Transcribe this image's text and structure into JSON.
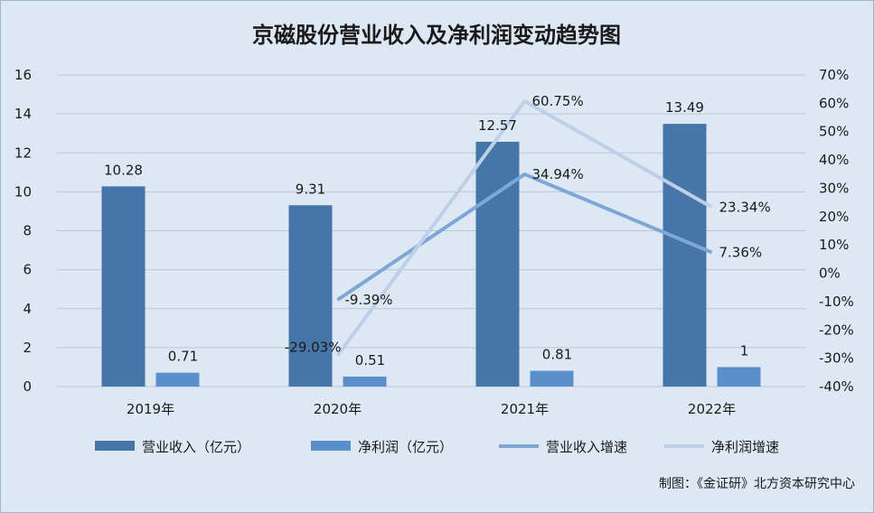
{
  "chart_data": {
    "type": "bar",
    "title": "京磁股份营业收入及净利润变动趋势图",
    "categories": [
      "2019年",
      "2020年",
      "2021年",
      "2022年"
    ],
    "series": [
      {
        "name": "营业收入（亿元）",
        "kind": "bar",
        "axis": "left",
        "color": "#4675a8",
        "values": [
          10.28,
          9.31,
          12.57,
          13.49
        ],
        "labels": [
          "10.28",
          "9.31",
          "12.57",
          "13.49"
        ]
      },
      {
        "name": "净利润（亿元）",
        "kind": "bar",
        "axis": "left",
        "color": "#5b8fcb",
        "values": [
          0.71,
          0.51,
          0.81,
          1
        ],
        "labels": [
          "0.71",
          "0.51",
          "0.81",
          "1"
        ]
      },
      {
        "name": "营业收入增速",
        "kind": "line",
        "axis": "right",
        "color": "#7fa7d6",
        "values": [
          null,
          -9.39,
          34.94,
          7.36
        ],
        "labels": [
          "",
          "-9.39%",
          "34.94%",
          "7.36%"
        ]
      },
      {
        "name": "净利润增速",
        "kind": "line",
        "axis": "right",
        "color": "#bdd0e8",
        "values": [
          null,
          -29.03,
          60.75,
          23.34
        ],
        "labels": [
          "",
          "-29.03%",
          "60.75%",
          "23.34%"
        ]
      }
    ],
    "y_left": {
      "range": [
        0,
        16
      ],
      "ticks": [
        "0",
        "2",
        "4",
        "6",
        "8",
        "10",
        "12",
        "14",
        "16"
      ]
    },
    "y_right": {
      "range": [
        -40,
        70
      ],
      "ticks": [
        "-40%",
        "-30%",
        "-20%",
        "-10%",
        "0%",
        "10%",
        "20%",
        "30%",
        "40%",
        "50%",
        "60%",
        "70%"
      ]
    },
    "grid": true,
    "legend": "bottom",
    "source": "制图：《金证研》北方资本研究中心"
  }
}
